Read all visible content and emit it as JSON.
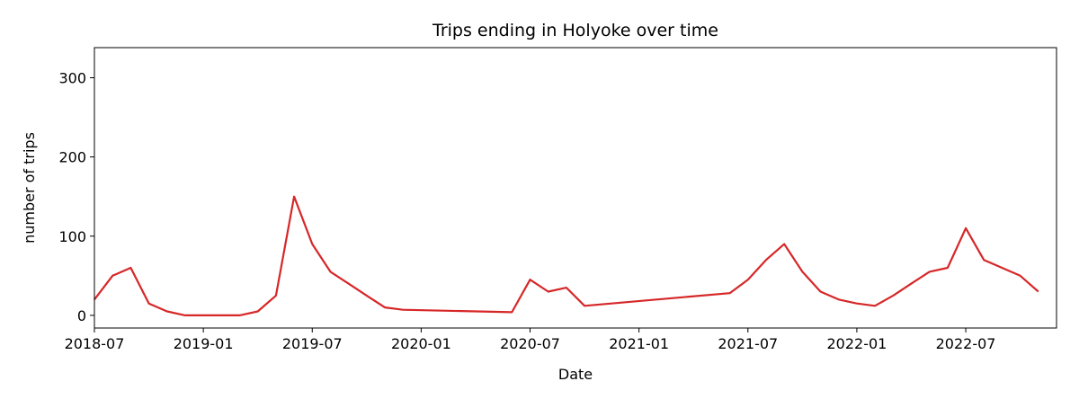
{
  "chart_data": {
    "type": "line",
    "title": "Trips ending in Holyoke over time",
    "x_label": "Date",
    "y_label": "number of trips",
    "x": [
      "2018-07",
      "2018-08",
      "2018-09",
      "2018-10",
      "2018-11",
      "2018-12",
      "2019-01",
      "2019-02",
      "2019-03",
      "2019-04",
      "2019-05",
      "2019-06",
      "2019-07",
      "2019-08",
      "2019-09",
      "2019-10",
      "2019-11",
      "2019-12",
      "2020-06",
      "2020-07",
      "2020-08",
      "2020-09",
      "2020-10",
      "2021-06",
      "2021-07",
      "2021-08",
      "2021-09",
      "2021-10",
      "2021-11",
      "2021-12",
      "2022-01",
      "2022-02",
      "2022-03",
      "2022-04",
      "2022-05",
      "2022-06",
      "2022-07",
      "2022-08",
      "2022-09",
      "2022-10",
      "2022-11"
    ],
    "values": [
      20,
      50,
      60,
      15,
      5,
      0,
      0,
      0,
      0,
      5,
      25,
      150,
      90,
      55,
      40,
      25,
      10,
      7,
      4,
      45,
      30,
      35,
      12,
      28,
      45,
      70,
      90,
      55,
      30,
      20,
      15,
      12,
      25,
      40,
      55,
      60,
      110,
      70,
      60,
      50,
      30
    ],
    "color": "#d62728",
    "xlim": [
      "2018-07",
      "2022-12"
    ],
    "xticks": [
      "2018-07",
      "2019-01",
      "2019-07",
      "2020-01",
      "2020-07",
      "2021-01",
      "2021-07",
      "2022-01",
      "2022-07"
    ],
    "ylim": [
      -16,
      338
    ],
    "yticks": [
      0,
      100,
      200,
      300
    ]
  }
}
